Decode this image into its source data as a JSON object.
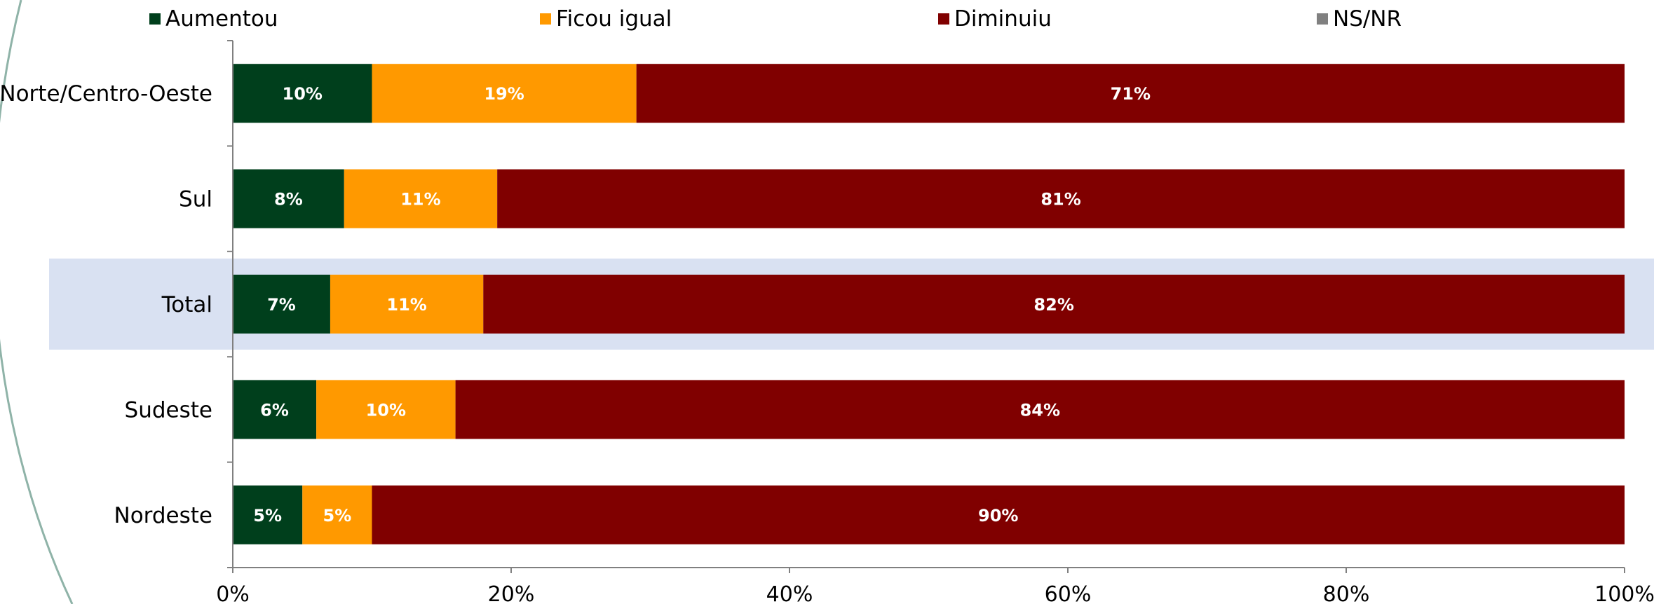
{
  "chart_data": {
    "type": "bar",
    "orientation": "horizontal",
    "stacked": true,
    "percent_stacked": true,
    "categories": [
      "Norte/Centro-Oeste",
      "Sul",
      "Total",
      "Sudeste",
      "Nordeste"
    ],
    "highlighted_category": "Total",
    "series": [
      {
        "name": "Aumentou",
        "color": "#003f1c",
        "values": [
          10,
          8,
          7,
          6,
          5
        ],
        "labels": [
          "10%",
          "8%",
          "7%",
          "6%",
          "5%"
        ]
      },
      {
        "name": "Ficou igual",
        "color": "#ff9900",
        "values": [
          19,
          11,
          11,
          10,
          5
        ],
        "labels": [
          "19%",
          "11%",
          "11%",
          "10%",
          "5%"
        ]
      },
      {
        "name": "Diminuiu",
        "color": "#800000",
        "values": [
          71,
          81,
          82,
          84,
          90
        ],
        "labels": [
          "71%",
          "81%",
          "82%",
          "84%",
          "90%"
        ]
      },
      {
        "name": "NS/NR",
        "color": "#808080",
        "values": [
          0,
          0,
          0,
          0,
          0
        ],
        "labels": [
          "",
          "",
          "",
          "",
          ""
        ]
      }
    ],
    "xlim": [
      0,
      100
    ],
    "x_ticks": [
      0,
      20,
      40,
      60,
      80,
      100
    ],
    "x_tick_labels": [
      "0%",
      "20%",
      "40%",
      "60%",
      "80%",
      "100%"
    ],
    "legend_position": "top",
    "grid": false,
    "highlight_color": "#d9e1f2",
    "decoration_color": "#8fb3a8"
  }
}
